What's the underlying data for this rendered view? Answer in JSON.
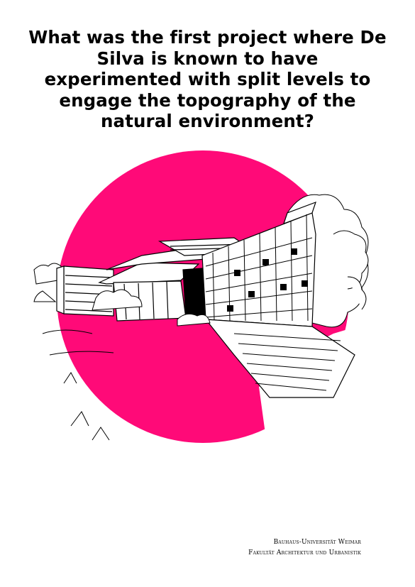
{
  "question": {
    "text": "What was the first project where De Silva is known to have experimented with split levels to engage the topography of the natural environment?"
  },
  "illustration": {
    "icon": "building-sketch-illustration",
    "accent_color": "#ff0a78"
  },
  "footer": {
    "line1": "Bauhaus-Universität Weimar",
    "line2": "Fakultät Architektur und Urbanistik"
  }
}
